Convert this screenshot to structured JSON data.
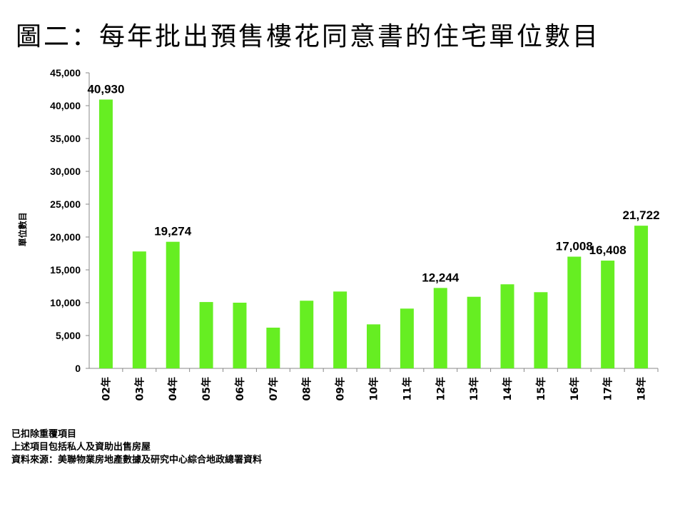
{
  "title": "圖二：每年批出預售樓花同意書的住宅單位數目",
  "notes": [
    "已扣除重覆項目",
    "上述項目包括私人及資助出售房屋",
    "資料來源：美聯物業房地產數據及研究中心綜合地政總署資料"
  ],
  "colors": {
    "bar": "#66ee22",
    "axis": "#888888"
  },
  "chart_data": {
    "type": "bar",
    "categories": [
      "02年",
      "03年",
      "04年",
      "05年",
      "06年",
      "07年",
      "08年",
      "09年",
      "10年",
      "11年",
      "12年",
      "13年",
      "14年",
      "15年",
      "16年",
      "17年",
      "18年"
    ],
    "values": [
      40930,
      17800,
      19274,
      10100,
      10000,
      6200,
      10300,
      11700,
      6700,
      9100,
      12244,
      10900,
      12800,
      11600,
      17008,
      16408,
      21722
    ],
    "data_labels": [
      "40,930",
      "",
      "19,274",
      "",
      "",
      "",
      "",
      "",
      "",
      "",
      "12,244",
      "",
      "",
      "",
      "17,008",
      "16,408",
      "21,722"
    ],
    "ylabel": "單位數目",
    "xlabel": "",
    "ylim": [
      0,
      45000
    ],
    "yticks": [
      0,
      5000,
      10000,
      15000,
      20000,
      25000,
      30000,
      35000,
      40000,
      45000
    ],
    "ytick_labels": [
      "0",
      "5,000",
      "10,000",
      "15,000",
      "20,000",
      "25,000",
      "30,000",
      "35,000",
      "40,000",
      "45,000"
    ],
    "grid": false,
    "legend": "none"
  }
}
